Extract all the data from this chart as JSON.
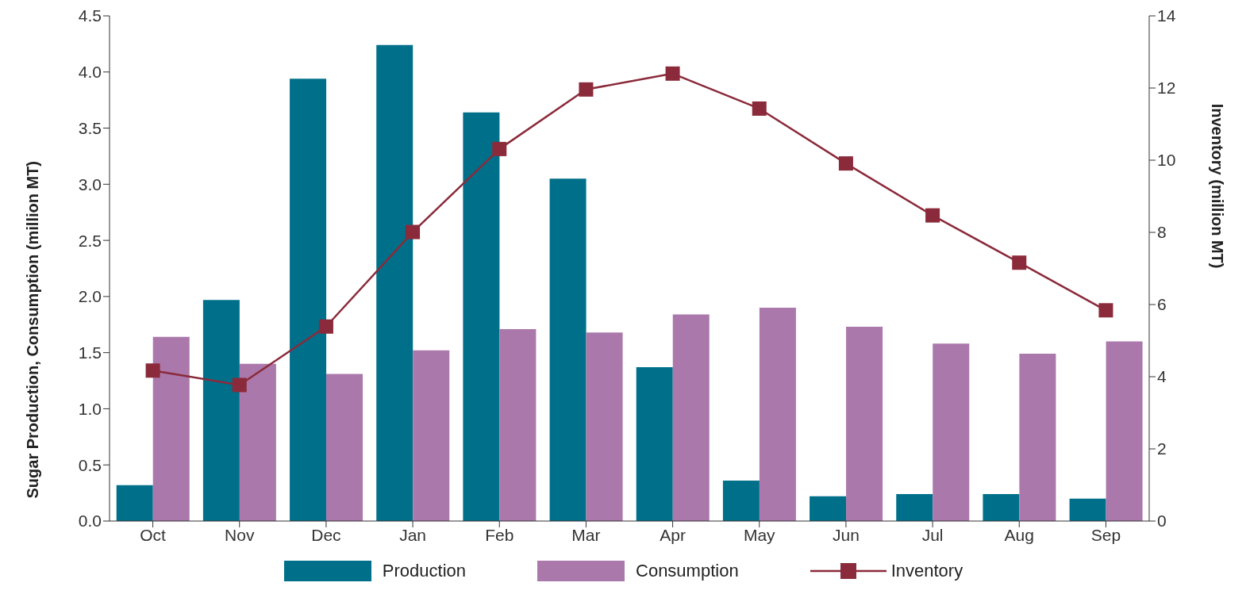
{
  "chart_data": {
    "type": "bar",
    "categories": [
      "Oct",
      "Nov",
      "Dec",
      "Jan",
      "Feb",
      "Mar",
      "Apr",
      "May",
      "Jun",
      "Jul",
      "Aug",
      "Sep"
    ],
    "ylabel": "Sugar Production, Consumption (million MT)",
    "y2label": "Inventory (million MT)",
    "series": [
      {
        "name": "Production",
        "color": "#00708a",
        "values": [
          0.32,
          1.97,
          3.94,
          4.24,
          3.64,
          3.05,
          1.37,
          0.36,
          0.22,
          0.24,
          0.24,
          0.2
        ]
      },
      {
        "name": "Consumption",
        "color": "#aa78ab",
        "values": [
          1.64,
          1.4,
          1.31,
          1.52,
          1.71,
          1.68,
          1.84,
          1.9,
          1.73,
          1.58,
          1.49,
          1.6
        ]
      },
      {
        "name": "Inventory",
        "type": "line",
        "axis": "y2",
        "color": "#8b2a3a",
        "marker": "square",
        "values": [
          4.17,
          3.77,
          5.39,
          8.01,
          10.31,
          11.96,
          12.4,
          11.43,
          9.91,
          8.47,
          7.16,
          5.84
        ]
      }
    ],
    "ylim": [
      0,
      4.5
    ],
    "yticks": [
      {
        "value": 0,
        "label": "0.0"
      },
      0.5,
      {
        "value": 1,
        "label": "1.0"
      },
      1.5,
      {
        "value": 2,
        "label": "2.0"
      },
      2.5,
      {
        "value": 3,
        "label": "3.0"
      },
      3.5,
      {
        "value": 4,
        "label": "4.0"
      },
      4.5
    ],
    "y2lim": [
      0,
      14
    ],
    "y2ticks": [
      0,
      2,
      4,
      6,
      8,
      10,
      12,
      14
    ],
    "grid": false,
    "legend": "bottom"
  }
}
